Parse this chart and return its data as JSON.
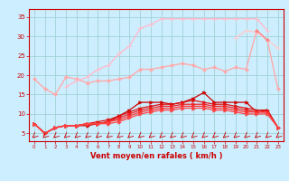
{
  "xlabel": "Vent moyen/en rafales ( km/h )",
  "xlim": [
    -0.5,
    23.5
  ],
  "ylim": [
    3.0,
    37.0
  ],
  "yticks": [
    5,
    10,
    15,
    20,
    25,
    30,
    35
  ],
  "xticks": [
    0,
    1,
    2,
    3,
    4,
    5,
    6,
    7,
    8,
    9,
    10,
    11,
    12,
    13,
    14,
    15,
    16,
    17,
    18,
    19,
    20,
    21,
    22,
    23
  ],
  "bg_color": "#cceeff",
  "grid_color": "#99cccc",
  "series": [
    {
      "color": "#ffaaaa",
      "alpha": 1.0,
      "linewidth": 1.0,
      "marker": "D",
      "markersize": 2.0,
      "data": [
        19.0,
        16.5,
        15.0,
        19.5,
        19.0,
        18.0,
        18.5,
        18.5,
        19.0,
        19.5,
        21.5,
        21.5,
        22.0,
        22.5,
        23.0,
        22.5,
        21.5,
        22.0,
        21.0,
        22.0,
        21.5,
        31.5,
        29.0,
        16.5
      ]
    },
    {
      "color": "#ffbbcc",
      "alpha": 1.0,
      "linewidth": 1.0,
      "marker": "+",
      "markersize": 4.0,
      "data": [
        null,
        null,
        null,
        17.0,
        18.5,
        19.5,
        21.5,
        22.5,
        25.5,
        27.5,
        32.0,
        33.0,
        34.5,
        34.5,
        34.5,
        34.5,
        34.5,
        34.5,
        34.5,
        34.5,
        34.5,
        34.5,
        31.5,
        null
      ]
    },
    {
      "color": "#ffcccc",
      "alpha": 1.0,
      "linewidth": 1.0,
      "marker": "+",
      "markersize": 4.0,
      "data": [
        null,
        null,
        null,
        null,
        null,
        null,
        null,
        null,
        null,
        null,
        null,
        null,
        null,
        null,
        null,
        null,
        null,
        null,
        null,
        29.5,
        31.5,
        31.0,
        29.0,
        27.0
      ]
    },
    {
      "color": "#ff8888",
      "alpha": 1.0,
      "linewidth": 1.0,
      "marker": "D",
      "markersize": 2.0,
      "data": [
        null,
        null,
        null,
        null,
        null,
        null,
        null,
        null,
        null,
        null,
        null,
        null,
        null,
        null,
        null,
        null,
        null,
        null,
        null,
        null,
        null,
        31.5,
        29.0,
        null
      ]
    },
    {
      "color": "#cc0000",
      "alpha": 1.0,
      "linewidth": 0.9,
      "marker": ">",
      "markersize": 2.5,
      "data": [
        7.5,
        5.0,
        6.5,
        7.0,
        7.0,
        7.0,
        7.5,
        8.0,
        9.5,
        11.0,
        13.0,
        13.0,
        13.0,
        12.5,
        13.0,
        14.0,
        15.5,
        13.0,
        13.0,
        13.0,
        13.0,
        10.5,
        11.0,
        6.5
      ]
    },
    {
      "color": "#dd1111",
      "alpha": 1.0,
      "linewidth": 0.9,
      "marker": ">",
      "markersize": 2.5,
      "data": [
        7.5,
        5.0,
        6.5,
        7.0,
        7.0,
        7.5,
        8.0,
        8.5,
        9.5,
        10.5,
        11.5,
        12.0,
        12.5,
        12.5,
        13.0,
        13.5,
        13.0,
        12.5,
        12.5,
        12.0,
        11.5,
        11.0,
        11.0,
        6.5
      ]
    },
    {
      "color": "#ee2222",
      "alpha": 1.0,
      "linewidth": 0.9,
      "marker": ">",
      "markersize": 2.5,
      "data": [
        7.5,
        5.0,
        6.5,
        7.0,
        7.0,
        7.5,
        7.5,
        8.0,
        9.0,
        10.0,
        11.0,
        11.5,
        12.0,
        12.0,
        12.5,
        12.5,
        12.5,
        12.0,
        12.0,
        11.5,
        11.0,
        10.5,
        10.5,
        6.5
      ]
    },
    {
      "color": "#ff3333",
      "alpha": 1.0,
      "linewidth": 0.9,
      "marker": ">",
      "markersize": 2.5,
      "data": [
        7.5,
        5.0,
        6.5,
        7.0,
        7.0,
        7.5,
        7.5,
        8.0,
        8.5,
        9.5,
        10.5,
        11.0,
        11.5,
        11.5,
        12.0,
        12.0,
        12.0,
        11.5,
        11.5,
        11.0,
        10.5,
        10.5,
        10.5,
        6.5
      ]
    },
    {
      "color": "#ff4444",
      "alpha": 1.0,
      "linewidth": 0.9,
      "marker": ">",
      "markersize": 2.5,
      "data": [
        7.5,
        5.0,
        6.5,
        7.0,
        7.0,
        7.5,
        7.5,
        7.5,
        8.0,
        9.0,
        10.0,
        10.5,
        11.0,
        11.0,
        11.5,
        11.5,
        11.5,
        11.0,
        11.0,
        10.5,
        10.0,
        10.0,
        10.0,
        6.5
      ]
    }
  ],
  "axis_color": "#cc0000",
  "tick_color": "#cc0000",
  "xlabel_color": "#cc0000"
}
